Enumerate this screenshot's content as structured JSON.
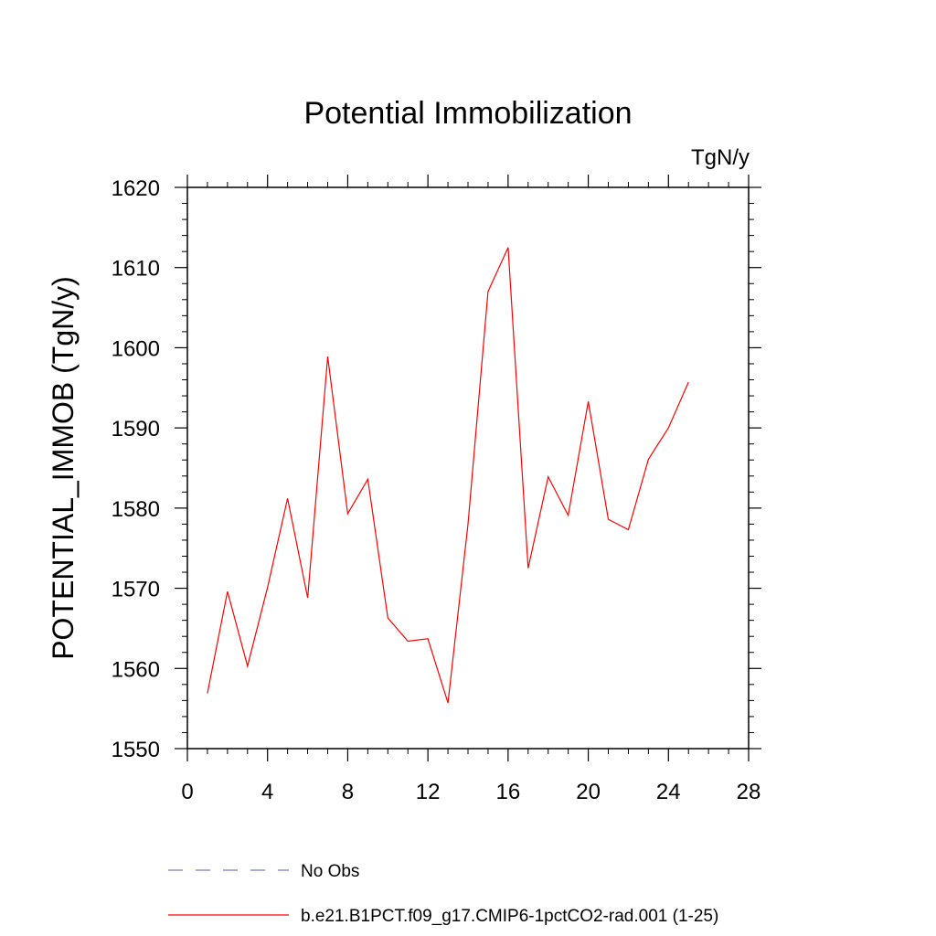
{
  "chart_data": {
    "type": "line",
    "title": "Potential Immobilization",
    "units_label": "TgN/y",
    "xlabel": "",
    "ylabel": "POTENTIAL_IMMOB  (TgN/y)",
    "xlim": [
      0,
      28
    ],
    "ylim": [
      1550,
      1620
    ],
    "xticks": [
      "0",
      "4",
      "8",
      "12",
      "16",
      "20",
      "24",
      "28"
    ],
    "yticks": [
      "1550",
      "1560",
      "1570",
      "1580",
      "1590",
      "1600",
      "1610",
      "1620"
    ],
    "grid": false,
    "legend_position": "bottom",
    "series": [
      {
        "name": "b.e21.B1PCT.f09_g17.CMIP6-1pctCO2-rad.001 (1-25)",
        "color": "#ff0000",
        "x": [
          1,
          2,
          3,
          4,
          5,
          6,
          7,
          8,
          9,
          10,
          11,
          12,
          13,
          14,
          15,
          16,
          17,
          18,
          19,
          20,
          21,
          22,
          23,
          24,
          25
        ],
        "values": [
          1556.9,
          1569.6,
          1560.3,
          1570.1,
          1581.2,
          1568.8,
          1598.9,
          1579.3,
          1583.6,
          1566.3,
          1563.4,
          1563.7,
          1555.7,
          1578.0,
          1607.0,
          1612.5,
          1572.5,
          1583.9,
          1579.1,
          1593.3,
          1578.6,
          1577.3,
          1586.1,
          1590.0,
          1595.7
        ]
      }
    ],
    "legend": [
      {
        "label": "No Obs",
        "color": "#7b7bc8",
        "dash": true
      },
      {
        "label": "b.e21.B1PCT.f09_g17.CMIP6-1pctCO2-rad.001 (1-25)",
        "color": "#ff0000",
        "dash": false
      }
    ]
  }
}
